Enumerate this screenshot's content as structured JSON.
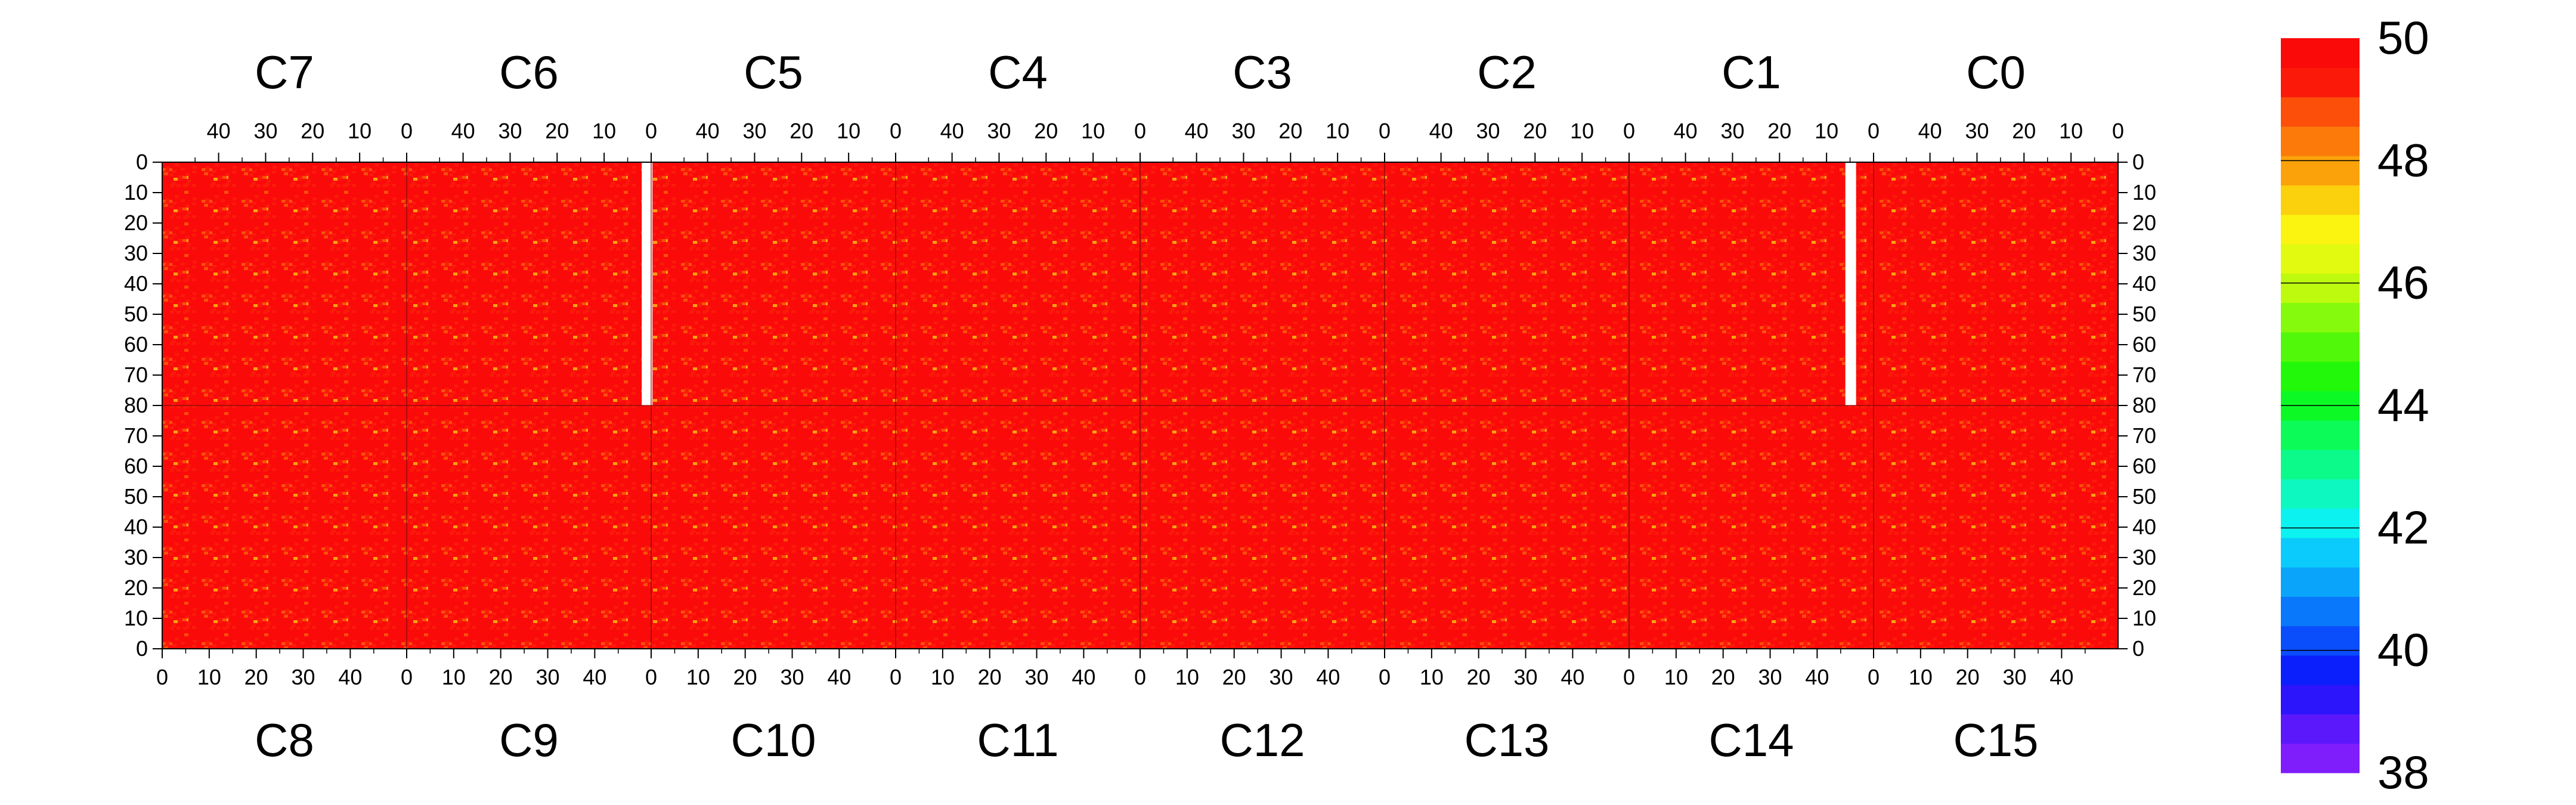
{
  "chart_data": {
    "type": "heatmap",
    "title": "",
    "xlabel": "",
    "ylabel": "",
    "panel_x_range": [
      0,
      52
    ],
    "panel_y_range": [
      0,
      80
    ],
    "x_tick_values": [
      0,
      10,
      20,
      30,
      40
    ],
    "y_tick_values": [
      0,
      10,
      20,
      30,
      40,
      50,
      60,
      70,
      80
    ],
    "top_row_chips": [
      "C7",
      "C6",
      "C5",
      "C4",
      "C3",
      "C2",
      "C1",
      "C0"
    ],
    "bottom_row_chips": [
      "C8",
      "C9",
      "C10",
      "C11",
      "C12",
      "C13",
      "C14",
      "C15"
    ],
    "top_row_x_direction": "reversed",
    "top_row_y_direction": "top-down",
    "bottom_row_y_direction": "bottom-up",
    "dominant_value": 50,
    "dead_columns": [
      {
        "chip": "C6",
        "column": 1,
        "row_range": [
          0,
          80
        ]
      },
      {
        "chip": "C1",
        "column": 5,
        "row_range": [
          0,
          80
        ]
      }
    ],
    "colorbar": {
      "min": 38,
      "max": 50,
      "tick_values": [
        50,
        48,
        46,
        44,
        42,
        40,
        38
      ],
      "levels": 20,
      "colors": [
        "#7f1dfb",
        "#5b18fb",
        "#2c14fb",
        "#0a1ffb",
        "#0a4dfb",
        "#0a78fb",
        "#0aa5fb",
        "#0acbfb",
        "#0cf2f0",
        "#0cf8c0",
        "#0cfa8a",
        "#0cfb58",
        "#0cf926",
        "#22f80a",
        "#52f80a",
        "#86fa0c",
        "#bdfa0e",
        "#e2fa10",
        "#fbf310",
        "#fbd00c",
        "#fba20a",
        "#fb7a0a",
        "#fb4f0a",
        "#fb1a0a",
        "#fb0a0a"
      ]
    }
  }
}
